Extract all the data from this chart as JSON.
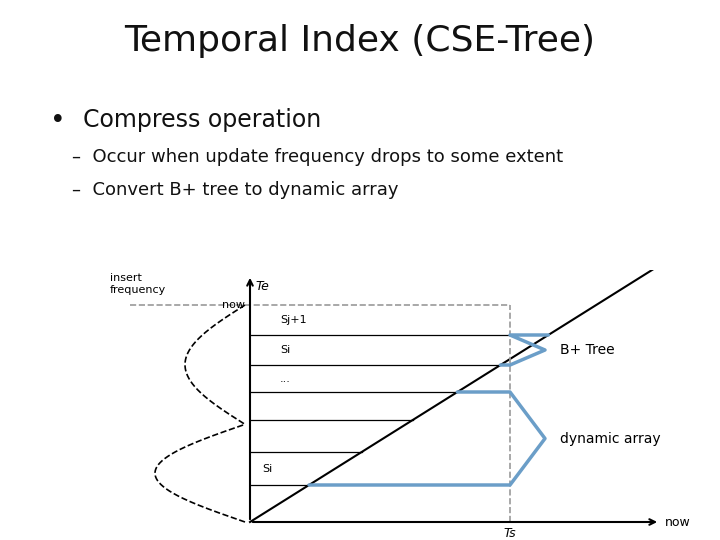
{
  "title": "Temporal Index (CSE-Tree)",
  "title_fontsize": 26,
  "bullet_text": "Compress operation",
  "bullet_fontsize": 17,
  "sub1": "Occur when update frequency drops to some extent",
  "sub2": "Convert B+ tree to dynamic array",
  "sub_fontsize": 13,
  "bg_color": "#ffffff",
  "line_color": "#000000",
  "blue_color": "#6b9ec8",
  "dash_color": "#999999",
  "Te_label": "Te",
  "Ts_label": "Ts",
  "now_x_label": "now",
  "now_y_label": "now",
  "insert_freq_label": "insert\nfrequency",
  "sj1_label": "Sj+1",
  "s_label": "Si",
  "si_label": "Si",
  "dots_label": "...",
  "bptree_label": "B+ Tree",
  "dynarray_label": "dynamic array"
}
